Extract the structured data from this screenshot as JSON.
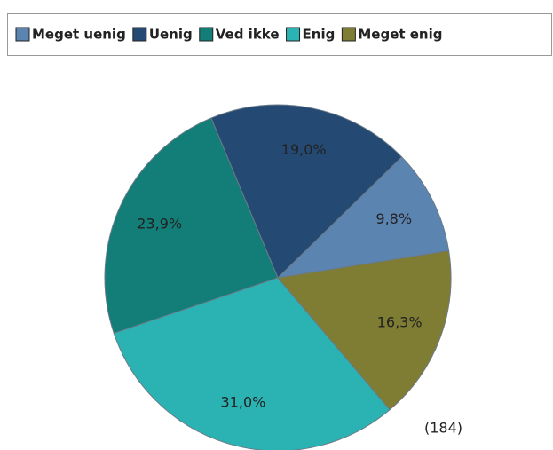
{
  "chart_data": {
    "type": "pie",
    "categories": [
      "Meget uenig",
      "Uenig",
      "Ved ikke",
      "Enig",
      "Meget enig"
    ],
    "values": [
      9.8,
      19.0,
      23.9,
      31.0,
      16.3
    ],
    "value_labels": [
      "9,8%",
      "19,0%",
      "23,9%",
      "31,0%",
      "16,3%"
    ],
    "colors": [
      "#5b84b1",
      "#244a73",
      "#137d78",
      "#2bb3b3",
      "#7f7d33"
    ],
    "annotation": "(184)",
    "legend": "top"
  }
}
